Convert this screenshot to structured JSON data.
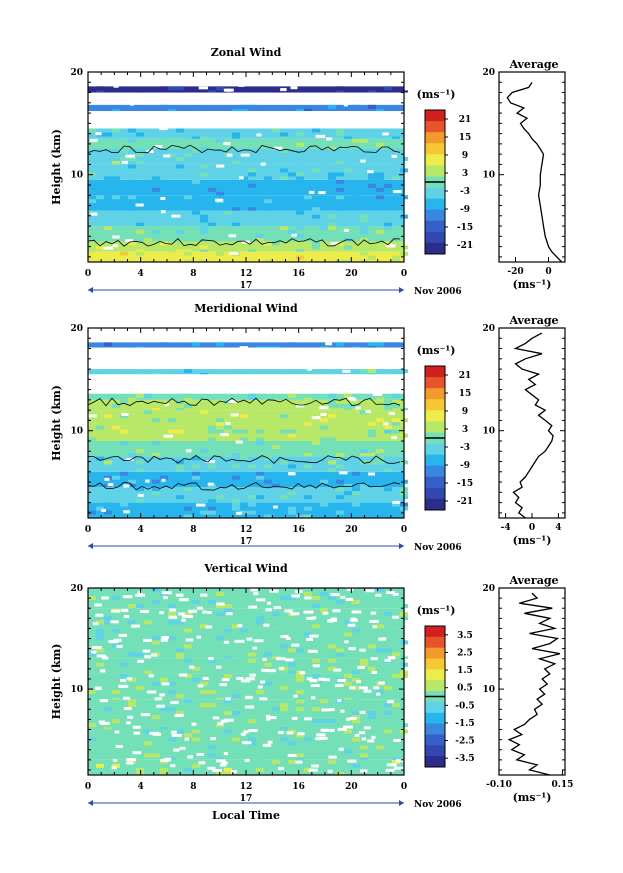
{
  "chart_data": [
    {
      "type": "heatmap",
      "title": "Zonal Wind",
      "ylabel": "Height (km)",
      "xlabel": "",
      "xlim": [
        0,
        24
      ],
      "ylim": [
        1.5,
        20
      ],
      "x_ticks": [
        "0",
        "4",
        "8",
        "12",
        "16",
        "20",
        "0"
      ],
      "y_ticks": [
        "10",
        "20"
      ],
      "day_label": "17",
      "month_label": "Nov 2006",
      "units": "(ms⁻¹)",
      "colorbar_ticks": [
        "21",
        "15",
        "9",
        "3",
        "-3",
        "-9",
        "-15",
        "-21"
      ],
      "colorbar_range": [
        -24,
        24
      ],
      "bands": [
        {
          "y0": 1.5,
          "y1": 2.5,
          "v": 6
        },
        {
          "y0": 2.5,
          "y1": 3.5,
          "v": 3
        },
        {
          "y0": 3.5,
          "y1": 5,
          "v": -1
        },
        {
          "y0": 5,
          "y1": 6.5,
          "v": -5
        },
        {
          "y0": 6.5,
          "y1": 8,
          "v": -7
        },
        {
          "y0": 8,
          "y1": 9.5,
          "v": -8
        },
        {
          "y0": 9.5,
          "y1": 11,
          "v": -5
        },
        {
          "y0": 11,
          "y1": 12.5,
          "v": -2
        },
        {
          "y0": 12.5,
          "y1": 13.5,
          "v": 0
        },
        {
          "y0": 13.5,
          "y1": 14.5,
          "v": -4
        },
        {
          "y0": 16.2,
          "y1": 16.8,
          "v": -10
        },
        {
          "y0": 18,
          "y1": 18.6,
          "v": -21
        }
      ],
      "contours": [
        3.4,
        12.5
      ],
      "average": {
        "title": "Average",
        "xlabel": "(ms⁻¹)",
        "xlim": [
          -30,
          10
        ],
        "x_ticks": [
          "-20",
          "0"
        ],
        "y_ticks": [
          "10",
          "20"
        ],
        "profile": {
          "z": [
            1.5,
            2,
            2.5,
            3,
            3.5,
            4,
            5,
            6,
            7,
            8,
            9,
            10,
            11,
            12,
            12.5,
            13,
            13.5,
            14,
            14.5,
            15,
            15.5,
            16,
            16.5,
            17,
            17.5,
            18,
            18.5,
            19
          ],
          "u": [
            8,
            5,
            2,
            0,
            -1,
            -2,
            -3,
            -4,
            -5,
            -6,
            -5,
            -5,
            -4,
            -3,
            -5,
            -7,
            -10,
            -12,
            -15,
            -17,
            -13,
            -19,
            -15,
            -23,
            -25,
            -22,
            -12,
            -10
          ]
        }
      }
    },
    {
      "type": "heatmap",
      "title": "Meridional Wind",
      "ylabel": "Height (km)",
      "xlabel": "",
      "xlim": [
        0,
        24
      ],
      "ylim": [
        1.5,
        20
      ],
      "x_ticks": [
        "0",
        "4",
        "8",
        "12",
        "16",
        "20",
        "0"
      ],
      "y_ticks": [
        "10",
        "20"
      ],
      "day_label": "17",
      "month_label": "Nov 2006",
      "units": "(ms⁻¹)",
      "colorbar_ticks": [
        "21",
        "15",
        "9",
        "3",
        "-3",
        "-9",
        "-15",
        "-21"
      ],
      "colorbar_range": [
        -24,
        24
      ],
      "bands": [
        {
          "y0": 1.5,
          "y1": 3,
          "v": -6
        },
        {
          "y0": 3,
          "y1": 4.5,
          "v": -4
        },
        {
          "y0": 4.5,
          "y1": 6,
          "v": -7
        },
        {
          "y0": 6,
          "y1": 7.5,
          "v": -2
        },
        {
          "y0": 7.5,
          "y1": 9,
          "v": 0
        },
        {
          "y0": 9,
          "y1": 10.5,
          "v": 2
        },
        {
          "y0": 10.5,
          "y1": 12,
          "v": 4
        },
        {
          "y0": 12,
          "y1": 13,
          "v": 3
        },
        {
          "y0": 13,
          "y1": 13.6,
          "v": 1
        },
        {
          "y0": 15.5,
          "y1": 16,
          "v": -2
        },
        {
          "y0": 18.1,
          "y1": 18.6,
          "v": -10
        }
      ],
      "contours": [
        4.6,
        7.2,
        12.8
      ],
      "average": {
        "title": "Average",
        "xlabel": "(ms⁻¹)",
        "xlim": [
          -5,
          5
        ],
        "x_ticks": [
          "-4",
          "0",
          "4"
        ],
        "y_ticks": [
          "10",
          "20"
        ],
        "profile": {
          "z": [
            1.5,
            2,
            2.5,
            3,
            3.5,
            4,
            4.5,
            5,
            5.5,
            6,
            6.5,
            7,
            7.5,
            8,
            8.5,
            9,
            9.5,
            10,
            10.5,
            11,
            11.5,
            12,
            12.5,
            13,
            13.5,
            14,
            14.5,
            15,
            15.5,
            16,
            16.5,
            17,
            17.5,
            18,
            18.5,
            19,
            19.5
          ],
          "u": [
            -1,
            -2,
            -1.5,
            -2.5,
            -2,
            -2.8,
            -1.5,
            -1.8,
            -1,
            -0.5,
            0,
            0.5,
            1,
            2,
            2.5,
            3,
            3.2,
            2.5,
            3,
            2,
            1,
            2,
            0.5,
            1,
            0,
            -1,
            0.5,
            -0.5,
            1,
            -1.5,
            -2.5,
            -1,
            1.5,
            -2.5,
            -1,
            0,
            1.5
          ]
        }
      }
    },
    {
      "type": "heatmap",
      "title": "Vertical Wind",
      "ylabel": "Height (km)",
      "xlabel": "Local Time",
      "xlim": [
        0,
        24
      ],
      "ylim": [
        1.5,
        20
      ],
      "x_ticks": [
        "0",
        "4",
        "8",
        "12",
        "16",
        "20",
        "0"
      ],
      "y_ticks": [
        "10",
        "20"
      ],
      "day_label": "17",
      "month_label": "Nov 2006",
      "units": "(ms⁻¹)",
      "colorbar_ticks": [
        "3.5",
        "2.5",
        "1.5",
        "0.5",
        "-0.5",
        "-1.5",
        "-2.5",
        "-3.5"
      ],
      "colorbar_range": [
        -4,
        4
      ],
      "bands": [
        {
          "y0": 1.5,
          "y1": 3,
          "v": 0.25
        },
        {
          "y0": 3,
          "y1": 6,
          "v": -0.05
        },
        {
          "y0": 6,
          "y1": 9,
          "v": 0.05
        },
        {
          "y0": 9,
          "y1": 11.5,
          "v": 0.15
        },
        {
          "y0": 11.5,
          "y1": 13,
          "v": 0.05
        },
        {
          "y0": 13,
          "y1": 16,
          "v": -0.02
        },
        {
          "y0": 16,
          "y1": 18,
          "v": 0.05
        },
        {
          "y0": 18,
          "y1": 20,
          "v": 0.0
        }
      ],
      "contours": [],
      "average": {
        "title": "Average",
        "xlabel": "(ms⁻¹)",
        "xlim": [
          -0.1,
          0.16
        ],
        "x_ticks": [
          "-0.10",
          "0.15"
        ],
        "y_ticks": [
          "10",
          "20"
        ],
        "profile": {
          "z": [
            1.5,
            2,
            2.5,
            3,
            3.5,
            4,
            4.5,
            5,
            5.5,
            6,
            6.5,
            7,
            7.5,
            8,
            8.5,
            9,
            9.5,
            10,
            10.5,
            11,
            11.5,
            12,
            12.5,
            13,
            13.5,
            14,
            14.5,
            15,
            15.5,
            16,
            16.5,
            17,
            17.5,
            18,
            18.5,
            19,
            19.5
          ],
          "u": [
            0.1,
            0.02,
            0.05,
            -0.03,
            0.0,
            -0.05,
            -0.02,
            -0.06,
            -0.01,
            -0.04,
            0.0,
            0.02,
            0.05,
            0.04,
            0.07,
            0.05,
            0.08,
            0.06,
            0.09,
            0.07,
            0.1,
            0.08,
            0.12,
            0.06,
            0.14,
            0.03,
            0.1,
            0.13,
            0.02,
            0.12,
            0.06,
            0.1,
            0.0,
            0.11,
            -0.02,
            0.05,
            0.03
          ]
        }
      }
    }
  ]
}
